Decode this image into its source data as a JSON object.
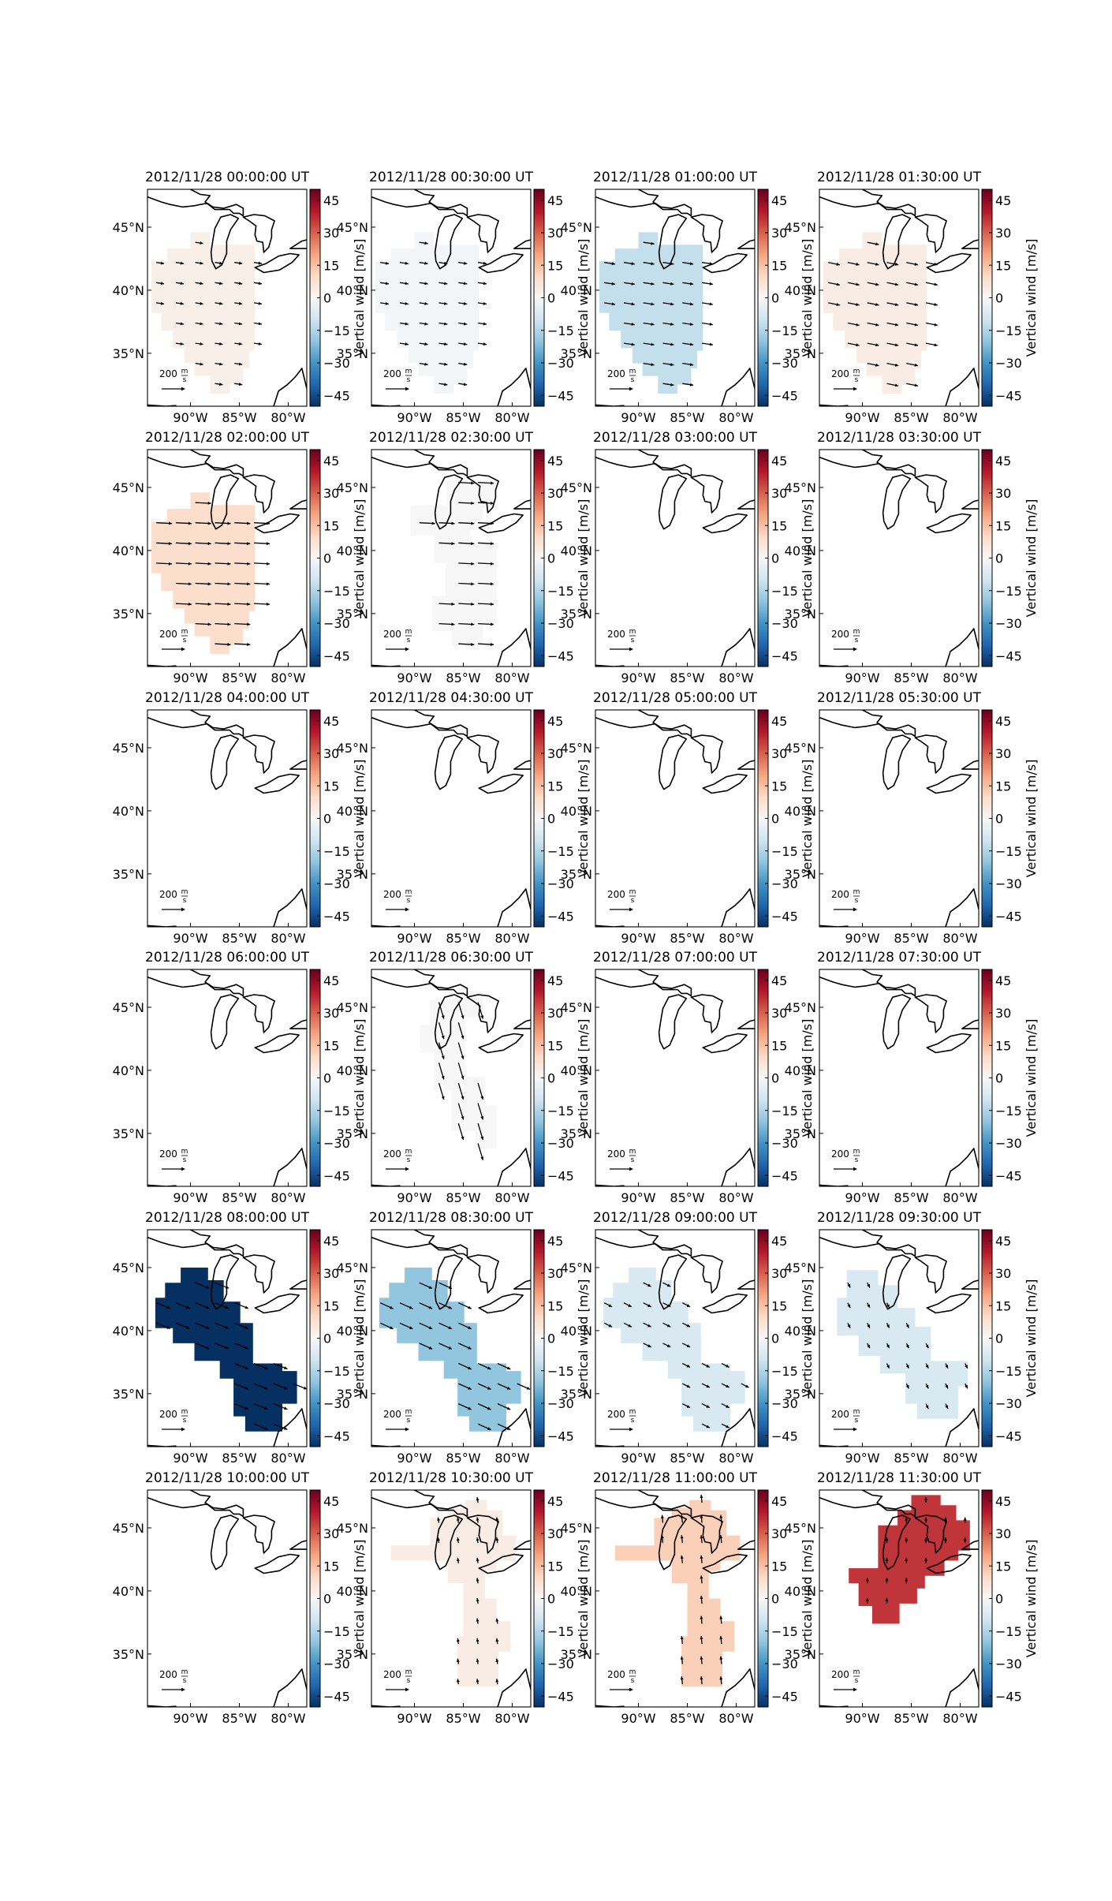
{
  "figure": {
    "colorbar_label": "Vertical wind [m/s]",
    "colorbar_ticks": [
      45,
      30,
      15,
      0,
      -15,
      -30,
      -45
    ],
    "colorbar_range": [
      -50,
      50
    ],
    "colormap": "RdBu_r",
    "colorbar_stops": [
      "#053061",
      "#2166ac",
      "#4393c3",
      "#92c5de",
      "#d1e5f0",
      "#f7f7f7",
      "#fddbc7",
      "#f4a582",
      "#d6604d",
      "#b2182b",
      "#67001f"
    ],
    "lat_labels": [
      "45°N",
      "40°N",
      "35°N"
    ],
    "lon_labels": [
      "90°W",
      "85°W",
      "80°W"
    ],
    "reference_vector_label": "200",
    "reference_vector_unit_num": "m",
    "reference_vector_unit_den": "s",
    "land_outline_color": "#000000"
  },
  "chart_data": {
    "type": "heatmap",
    "title": "",
    "xlabel": "",
    "ylabel": "",
    "value_label": "Vertical wind [m/s]",
    "value_range": [
      -50,
      50
    ],
    "panels": [
      {
        "title": "2012/11/28 00:00:00 UT",
        "value": 3,
        "region": "west",
        "arrow_dir": [
          1,
          0.15
        ],
        "arrow_len": 0.5
      },
      {
        "title": "2012/11/28 00:30:00 UT",
        "value": -1,
        "region": "west",
        "arrow_dir": [
          1,
          0.15
        ],
        "arrow_len": 0.55
      },
      {
        "title": "2012/11/28 01:00:00 UT",
        "value": -12,
        "region": "west",
        "arrow_dir": [
          1,
          0.15
        ],
        "arrow_len": 0.7
      },
      {
        "title": "2012/11/28 01:30:00 UT",
        "value": 4,
        "region": "west",
        "arrow_dir": [
          1,
          0.2
        ],
        "arrow_len": 0.75
      },
      {
        "title": "2012/11/28 02:00:00 UT",
        "value": 9,
        "region": "west",
        "arrow_dir": [
          1,
          0.05
        ],
        "arrow_len": 1.0
      },
      {
        "title": "2012/11/28 02:30:00 UT",
        "value": 0,
        "region": "central",
        "arrow_dir": [
          1,
          0.05
        ],
        "arrow_len": 1.0
      },
      {
        "title": "2012/11/28 03:00:00 UT",
        "value": null
      },
      {
        "title": "2012/11/28 03:30:00 UT",
        "value": null
      },
      {
        "title": "2012/11/28 04:00:00 UT",
        "value": null
      },
      {
        "title": "2012/11/28 04:30:00 UT",
        "value": null
      },
      {
        "title": "2012/11/28 05:00:00 UT",
        "value": null
      },
      {
        "title": "2012/11/28 05:30:00 UT",
        "value": null
      },
      {
        "title": "2012/11/28 06:00:00 UT",
        "value": null
      },
      {
        "title": "2012/11/28 06:30:00 UT",
        "value": 0,
        "region": "diag",
        "arrow_dir": [
          0.3,
          1
        ],
        "arrow_len": 1.1
      },
      {
        "title": "2012/11/28 07:00:00 UT",
        "value": null
      },
      {
        "title": "2012/11/28 07:30:00 UT",
        "value": null
      },
      {
        "title": "2012/11/28 08:00:00 UT",
        "value": -50,
        "region": "blob",
        "arrow_dir": [
          1,
          0.4
        ],
        "arrow_len": 0.95
      },
      {
        "title": "2012/11/28 08:30:00 UT",
        "value": -20,
        "region": "blob",
        "arrow_dir": [
          1,
          0.45
        ],
        "arrow_len": 0.9
      },
      {
        "title": "2012/11/28 09:00:00 UT",
        "value": -8,
        "region": "blob",
        "arrow_dir": [
          1,
          0.5
        ],
        "arrow_len": 0.55
      },
      {
        "title": "2012/11/28 09:30:00 UT",
        "value": -8,
        "region": "blob2",
        "arrow_dir": [
          0.5,
          1
        ],
        "arrow_len": 0.35
      },
      {
        "title": "2012/11/28 10:00:00 UT",
        "value": null
      },
      {
        "title": "2012/11/28 10:30:00 UT",
        "value": 4,
        "region": "north",
        "arrow_dir": [
          -0.15,
          -1
        ],
        "arrow_len": 0.35
      },
      {
        "title": "2012/11/28 11:00:00 UT",
        "value": 12,
        "region": "north",
        "arrow_dir": [
          -0.1,
          -1
        ],
        "arrow_len": 0.5
      },
      {
        "title": "2012/11/28 11:30:00 UT",
        "value": 36,
        "region": "northcore",
        "arrow_dir": [
          0,
          -1
        ],
        "arrow_len": 0.35
      }
    ]
  }
}
